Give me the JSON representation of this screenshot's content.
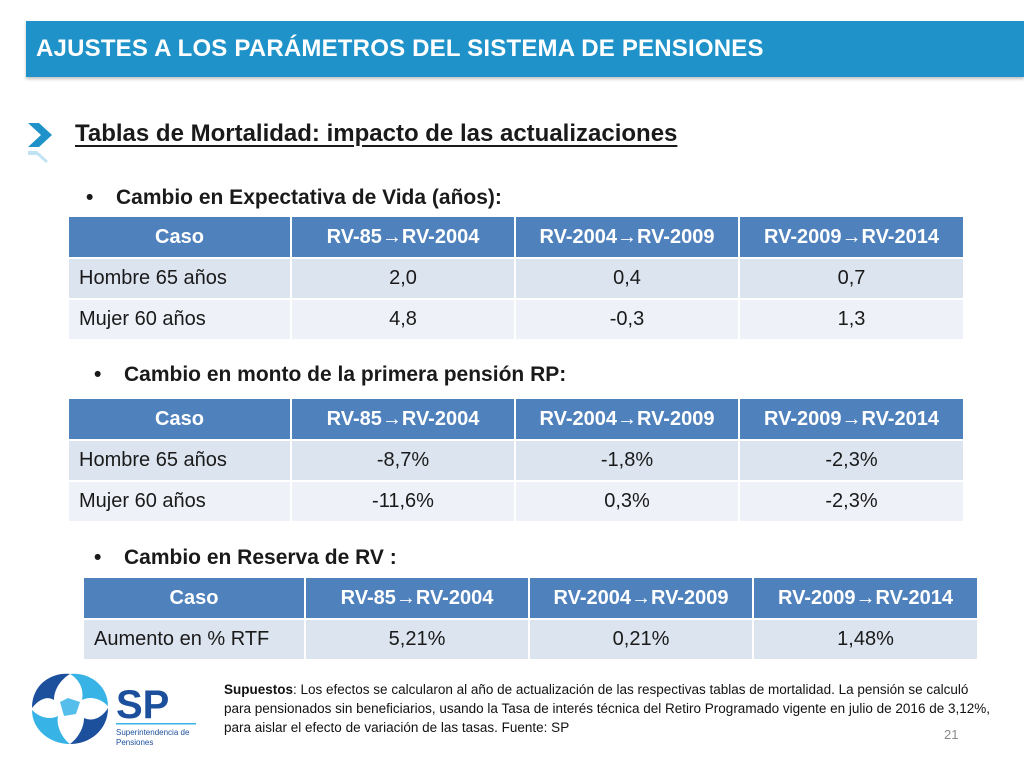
{
  "header": {
    "title": "AJUSTES A LOS PARÁMETROS DEL SISTEMA DE PENSIONES"
  },
  "subtitle": "Tablas de Mortalidad: impacto de las actualizaciones",
  "bullet_glyph": "•",
  "sections": [
    {
      "heading": "Cambio en Expectativa de Vida (años):",
      "columns": [
        "Caso",
        "RV-85→RV-2004",
        "RV-2004→RV-2009",
        "RV-2009→RV-2014"
      ],
      "rows": [
        [
          "Hombre 65 años",
          "2,0",
          "0,4",
          "0,7"
        ],
        [
          "Mujer 60 años",
          "4,8",
          "-0,3",
          "1,3"
        ]
      ]
    },
    {
      "heading": "Cambio en monto de la primera pensión RP:",
      "columns": [
        "Caso",
        "RV-85→RV-2004",
        "RV-2004→RV-2009",
        "RV-2009→RV-2014"
      ],
      "rows": [
        [
          "Hombre 65 años",
          "-8,7%",
          "-1,8%",
          "-2,3%"
        ],
        [
          "Mujer 60 años",
          "-11,6%",
          "0,3%",
          "-2,3%"
        ]
      ]
    },
    {
      "heading": "Cambio en Reserva de RV :",
      "columns": [
        "Caso",
        "RV-85→RV-2004",
        "RV-2004→RV-2009",
        "RV-2009→RV-2014"
      ],
      "rows": [
        [
          "Aumento en % RTF",
          "5,21%",
          "0,21%",
          "1,48%"
        ]
      ]
    }
  ],
  "footnote": {
    "label": "Supuestos",
    "text": ": Los efectos se calcularon al año de actualización de las respectivas tablas de mortalidad. La pensión se calculó para pensionados sin beneficiarios, usando la Tasa de interés técnica del Retiro Programado vigente en julio de 2016 de 3,12%, para aislar el efecto de variación de las tasas. Fuente: SP"
  },
  "logo": {
    "mark": "SP",
    "line1": "Superintendencia de",
    "line2": "Pensiones"
  },
  "page_number": "21",
  "colors": {
    "header": "#1f93c9",
    "table_header": "#4f81bd",
    "row_fill": "#dce4f0",
    "row_fill_alt": "#eef1f7",
    "logo_blue": "#1c4f9c",
    "logo_cyan": "#37b3e6"
  }
}
